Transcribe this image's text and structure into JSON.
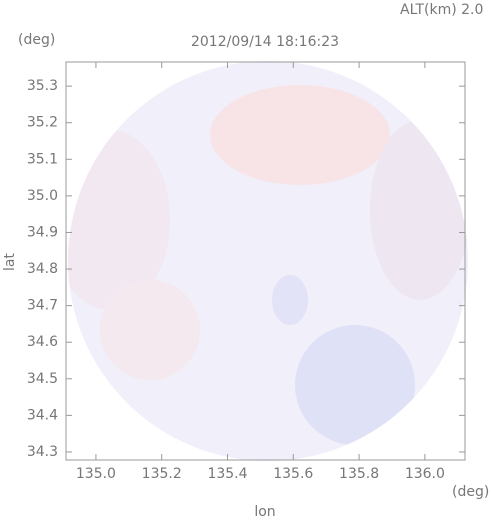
{
  "chart_data": {
    "type": "radar-map",
    "title": "2012/09/14 18:16:23",
    "altitude_label": "ALT(km) 2.0",
    "x_label": "lon",
    "y_label": "lat",
    "x_unit": "(deg)",
    "y_unit": "(deg)",
    "xlim": [
      134.909,
      136.122
    ],
    "ylim": [
      34.278,
      35.366
    ],
    "xticks": [
      {
        "value": 135,
        "label": "135.0"
      },
      135.2,
      135.4,
      135.6,
      135.8,
      {
        "value": 136,
        "label": "136.0"
      }
    ],
    "yticks": [
      34.3,
      34.4,
      34.5,
      34.6,
      34.7,
      34.8,
      34.9,
      {
        "value": 35,
        "label": "35.0"
      },
      35.1,
      35.2,
      35.3
    ]
  }
}
